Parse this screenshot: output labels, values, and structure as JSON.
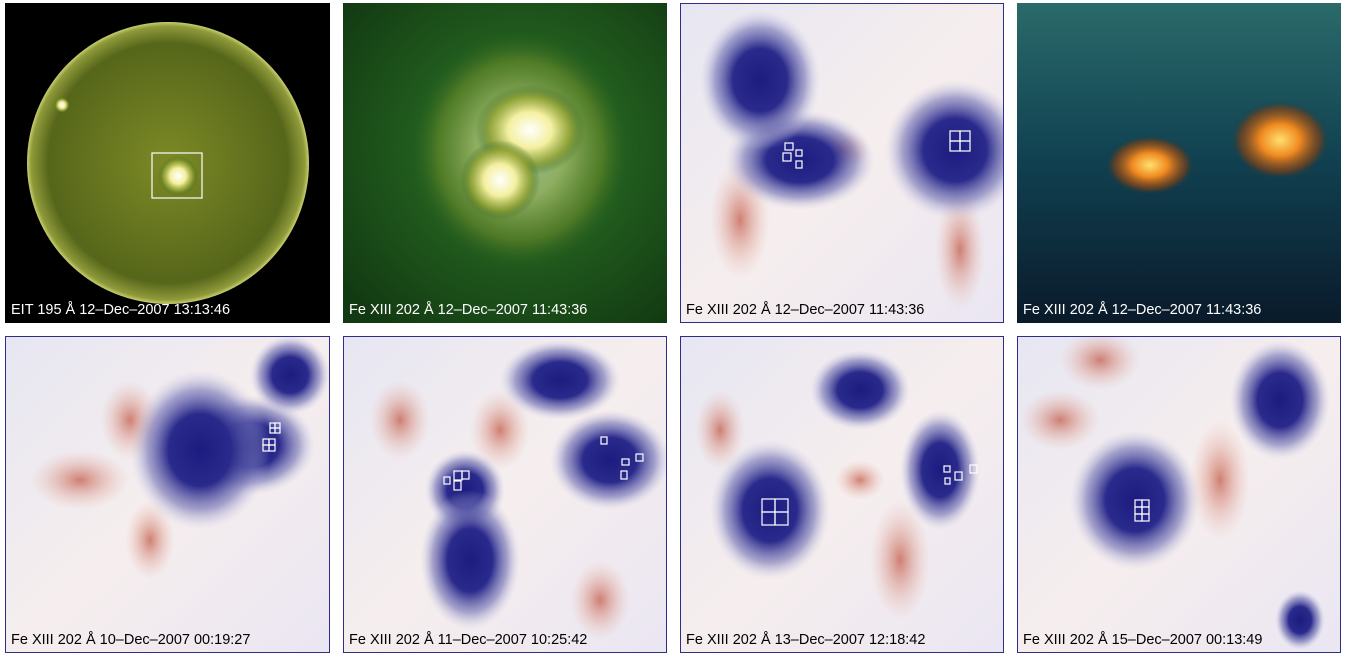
{
  "panels": [
    {
      "label": "EIT 195 Å 12–Dec–2007 13:13:46"
    },
    {
      "label": "Fe XIII 202 Å 12–Dec–2007 11:43:36"
    },
    {
      "label": "Fe XIII 202 Å 12–Dec–2007 11:43:36"
    },
    {
      "label": "Fe XIII 202 Å 12–Dec–2007 11:43:36"
    },
    {
      "label": "Fe XIII 202 Å 10–Dec–2007 00:19:27"
    },
    {
      "label": "Fe XIII 202 Å 11–Dec–2007 10:25:42"
    },
    {
      "label": "Fe XIII 202 Å 13–Dec–2007 12:18:42"
    },
    {
      "label": "Fe XIII 202 Å 15–Dec–2007 00:13:49"
    }
  ]
}
